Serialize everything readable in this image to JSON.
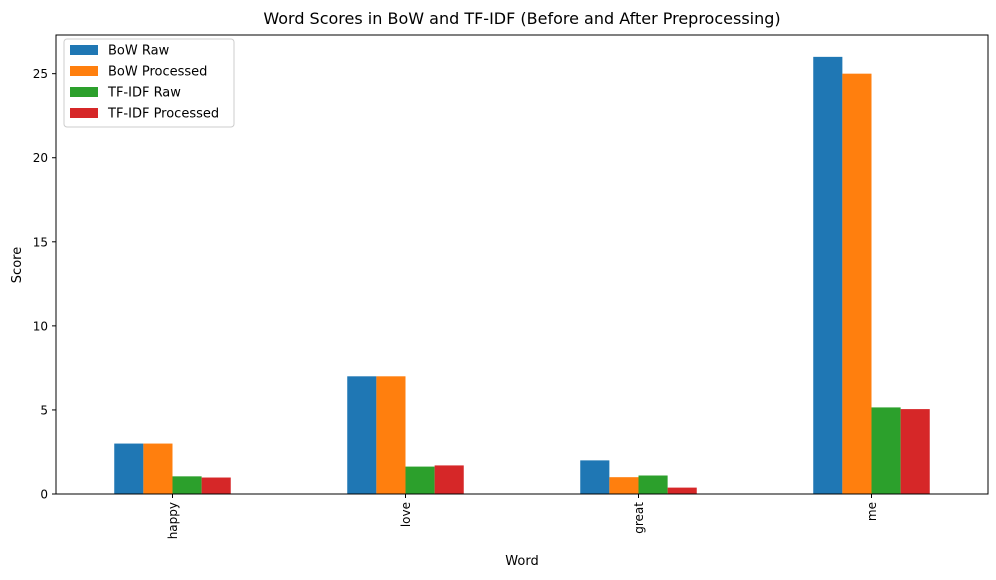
{
  "chart_data": {
    "type": "bar",
    "title": "Word Scores in BoW and TF-IDF (Before and After Preprocessing)",
    "xlabel": "Word",
    "ylabel": "Score",
    "ylim": [
      0,
      27.3
    ],
    "yticks": [
      0,
      5,
      10,
      15,
      20,
      25
    ],
    "grid": false,
    "legend_position": "top-left",
    "categories": [
      "happy",
      "love",
      "great",
      "me"
    ],
    "series": [
      {
        "name": "BoW Raw",
        "color": "#1f77b4",
        "values": [
          3,
          7,
          2,
          26
        ]
      },
      {
        "name": "BoW Processed",
        "color": "#ff7f0e",
        "values": [
          3,
          7,
          1,
          25
        ]
      },
      {
        "name": "TF-IDF Raw",
        "color": "#2ca02c",
        "values": [
          1.05,
          1.63,
          1.1,
          5.15
        ]
      },
      {
        "name": "TF-IDF Processed",
        "color": "#d62728",
        "values": [
          0.98,
          1.7,
          0.38,
          5.05
        ]
      }
    ]
  }
}
